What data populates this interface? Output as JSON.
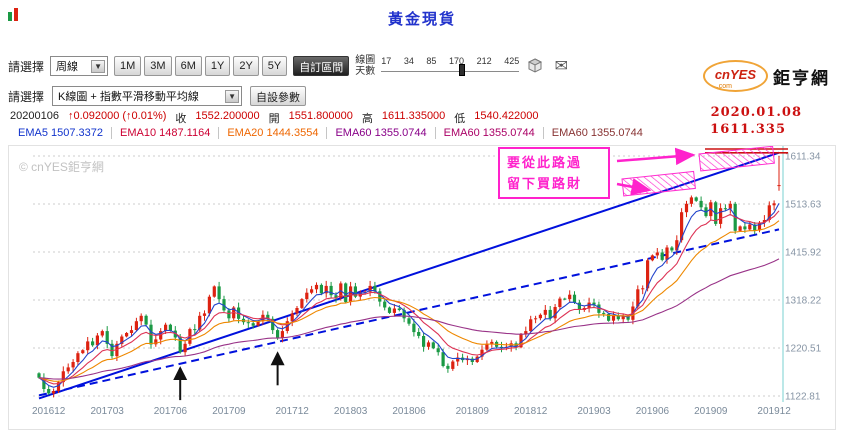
{
  "title": "黃金現貨",
  "icons": {
    "dropdown": "▼",
    "mail": "✉"
  },
  "logo": {
    "brand": "cnYES",
    "dotcom": ".com",
    "site": "鉅亨網"
  },
  "toolbar1": {
    "label": "請選擇",
    "period_select": "周線",
    "range_buttons": [
      "1M",
      "3M",
      "6M",
      "1Y",
      "2Y",
      "5Y"
    ],
    "custom_range": "自訂區間",
    "days_label_1": "線圖",
    "days_label_2": "天數",
    "days_ticks": [
      "17",
      "34",
      "85",
      "170",
      "212",
      "425"
    ]
  },
  "toolbar2": {
    "label": "請選擇",
    "chart_type_select": "K線圖 + 指數平滑移動平均線",
    "custom_params": "自設參數"
  },
  "quote": {
    "parts": [
      [
        "20200106",
        "k"
      ],
      [
        "↑0.092000 (↑0.01%)",
        "r"
      ],
      [
        "收",
        "k"
      ],
      [
        "1552.200000",
        "r"
      ],
      [
        "開",
        "k"
      ],
      [
        "1551.800000",
        "r"
      ],
      [
        "高",
        "k"
      ],
      [
        "1611.335000",
        "r"
      ],
      [
        "低",
        "k"
      ],
      [
        "1540.422000",
        "r"
      ]
    ]
  },
  "ema_row": [
    [
      "EMA5 1507.3372",
      "#1133cc"
    ],
    [
      "EMA10 1487.1164",
      "#cc0033"
    ],
    [
      "EMA20 1444.3554",
      "#ee6600"
    ],
    [
      "EMA60 1355.0744",
      "#880088"
    ],
    [
      "EMA60 1355.0744",
      "#aa0066"
    ],
    [
      "EMA60 1355.0744",
      "#883333"
    ]
  ],
  "marker": {
    "date": "2020.01.08",
    "price": "1611.335"
  },
  "watermark": "© cnYES鉅亨網",
  "annotation": {
    "line1": "要從此路過",
    "line2": "留下買路財"
  },
  "chart_data": {
    "type": "candlestick",
    "title": "黃金現貨 週K線",
    "x_labels": [
      "201612",
      "201703",
      "201706",
      "201709",
      "201712",
      "201803",
      "201806",
      "201809",
      "201812",
      "201903",
      "201906",
      "201909",
      "201912"
    ],
    "x_label_indices": [
      2,
      14,
      27,
      39,
      52,
      64,
      76,
      89,
      101,
      114,
      126,
      138,
      151
    ],
    "y_ticks": [
      1611.34,
      1513.63,
      1415.92,
      1318.22,
      1220.51,
      1122.81
    ],
    "closes": [
      1160,
      1137,
      1128,
      1133,
      1151,
      1173,
      1181,
      1192,
      1210,
      1216,
      1234,
      1226,
      1246,
      1255,
      1229,
      1204,
      1229,
      1244,
      1251,
      1257,
      1275,
      1286,
      1268,
      1228,
      1238,
      1255,
      1268,
      1256,
      1242,
      1212,
      1229,
      1259,
      1258,
      1286,
      1291,
      1325,
      1346,
      1320,
      1297,
      1281,
      1303,
      1280,
      1273,
      1271,
      1266,
      1275,
      1288,
      1280,
      1257,
      1241,
      1255,
      1275,
      1291,
      1302,
      1320,
      1333,
      1340,
      1349,
      1332,
      1347,
      1328,
      1323,
      1352,
      1314,
      1346,
      1325,
      1333,
      1335,
      1347,
      1336,
      1315,
      1303,
      1292,
      1301,
      1298,
      1281,
      1270,
      1253,
      1245,
      1223,
      1232,
      1220,
      1212,
      1184,
      1178,
      1193,
      1201,
      1196,
      1199,
      1192,
      1203,
      1217,
      1229,
      1233,
      1223,
      1221,
      1223,
      1230,
      1222,
      1249,
      1255,
      1279,
      1281,
      1288,
      1298,
      1281,
      1304,
      1321,
      1320,
      1329,
      1313,
      1298,
      1302,
      1313,
      1309,
      1292,
      1290,
      1276,
      1286,
      1279,
      1286,
      1278,
      1305,
      1340,
      1342,
      1399,
      1409,
      1415,
      1400,
      1425,
      1419,
      1440,
      1497,
      1514,
      1527,
      1520,
      1507,
      1489,
      1517,
      1473,
      1505,
      1504,
      1514,
      1459,
      1468,
      1462,
      1472,
      1460,
      1476,
      1481,
      1511,
      1515,
      1552
    ],
    "last_candle": {
      "open": 1551.8,
      "high": 1611.335,
      "low": 1540.422,
      "close": 1552.2
    },
    "ema_periods": [
      5,
      10,
      20,
      60
    ],
    "ema_colors": [
      "#2244cc",
      "#dd3355",
      "#ee8800",
      "#993388"
    ],
    "up_color": "#dd2211",
    "down_color": "#1a9944",
    "trendlines": [
      {
        "style": "solid",
        "from": [
          0,
          1118
        ],
        "to": [
          152,
          1618
        ],
        "color": "#0011dd"
      },
      {
        "style": "dashed",
        "from": [
          0,
          1124
        ],
        "to": [
          152,
          1462
        ],
        "color": "#0011dd"
      }
    ],
    "black_arrows": [
      {
        "index": 29,
        "price": 1200
      },
      {
        "index": 49,
        "price": 1230
      }
    ],
    "resistance_level": 1611.335
  }
}
